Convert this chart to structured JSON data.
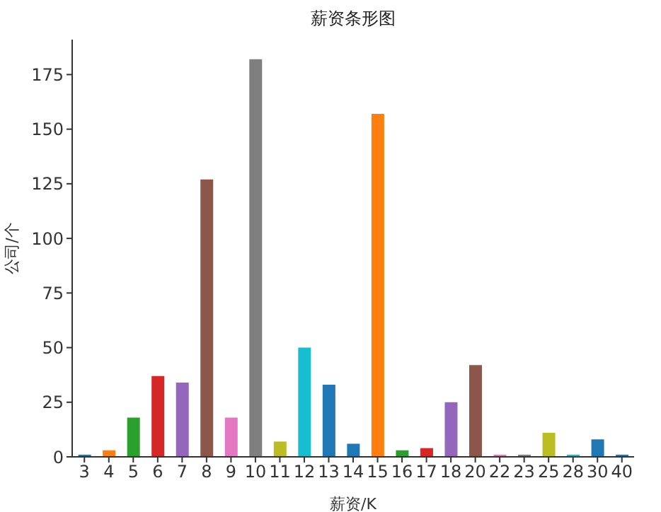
{
  "chart_data": {
    "type": "bar",
    "title": "薪资条形图",
    "xlabel": "薪资/K",
    "ylabel": "公司/个",
    "categories": [
      "3",
      "4",
      "5",
      "6",
      "7",
      "8",
      "9",
      "10",
      "11",
      "12",
      "13",
      "14",
      "15",
      "16",
      "17",
      "18",
      "20",
      "22",
      "23",
      "25",
      "28",
      "30",
      "40"
    ],
    "values": [
      1,
      3,
      18,
      37,
      34,
      127,
      18,
      182,
      7,
      50,
      33,
      6,
      157,
      3,
      4,
      25,
      42,
      1,
      1,
      11,
      1,
      8,
      1
    ],
    "colors": [
      "#1f77b4",
      "#ff7f0e",
      "#2ca02c",
      "#d62728",
      "#9467bd",
      "#8c564b",
      "#e377c2",
      "#7f7f7f",
      "#bcbd22",
      "#17becf",
      "#1f77b4",
      "#1f77b4",
      "#ff7f0e",
      "#2ca02c",
      "#d62728",
      "#9467bd",
      "#8c564b",
      "#e377c2",
      "#7f7f7f",
      "#bcbd22",
      "#17becf",
      "#1f77b4",
      "#1f77b4"
    ],
    "ylim": [
      0,
      191
    ],
    "yticks": [
      0,
      25,
      50,
      75,
      100,
      125,
      150,
      175
    ],
    "grid": false,
    "legend": false
  }
}
